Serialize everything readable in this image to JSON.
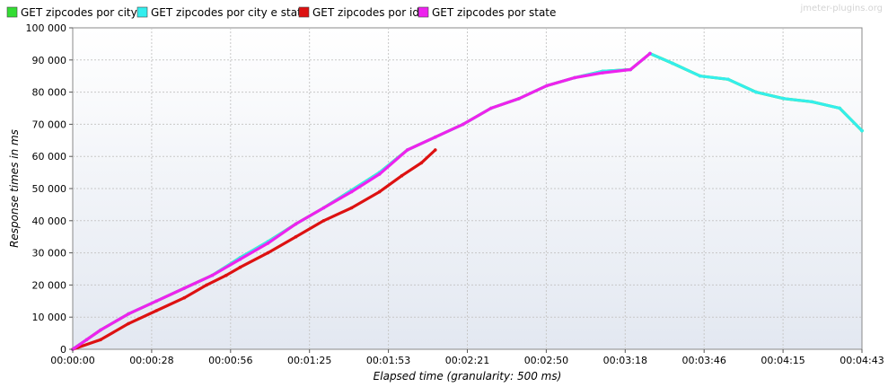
{
  "watermark": "jmeter-plugins.org",
  "chart_data": {
    "type": "line",
    "xlabel": "Elapsed time (granularity: 500 ms)",
    "ylabel": "Response times in ms",
    "x_ticks": [
      "00:00:00",
      "00:00:28",
      "00:00:56",
      "00:01:25",
      "00:01:53",
      "00:02:21",
      "00:02:50",
      "00:03:18",
      "00:03:46",
      "00:04:15",
      "00:04:43"
    ],
    "y_ticks": [
      "0",
      "10 000",
      "20 000",
      "30 000",
      "40 000",
      "50 000",
      "60 000",
      "70 000",
      "80 000",
      "90 000",
      "100 000"
    ],
    "xlim_seconds": [
      0,
      283
    ],
    "ylim": [
      0,
      100000
    ],
    "grid": true,
    "legend_position": "top",
    "x_unit": "seconds elapsed",
    "series": [
      {
        "name": "GET zipcodes por city",
        "color": "#33dd33",
        "points": [
          [
            0,
            0
          ],
          [
            5,
            3000
          ],
          [
            10,
            6000
          ],
          [
            20,
            11000
          ],
          [
            30,
            15000
          ],
          [
            40,
            19000
          ],
          [
            50,
            23000
          ],
          [
            60,
            28500
          ],
          [
            70,
            33500
          ],
          [
            80,
            39000
          ],
          [
            90,
            44000
          ],
          [
            100,
            49500
          ],
          [
            110,
            55000
          ],
          [
            120,
            62000
          ],
          [
            130,
            66000
          ],
          [
            140,
            70000
          ],
          [
            150,
            75000
          ],
          [
            160,
            78000
          ],
          [
            170,
            82000
          ],
          [
            180,
            84500
          ],
          [
            190,
            86500
          ],
          [
            200,
            87000
          ],
          [
            207,
            92000
          ],
          [
            215,
            89000
          ],
          [
            225,
            85000
          ],
          [
            235,
            84000
          ],
          [
            245,
            80000
          ],
          [
            255,
            78000
          ],
          [
            265,
            77000
          ],
          [
            275,
            75000
          ],
          [
            283,
            68000
          ]
        ]
      },
      {
        "name": "GET zipcodes por city e state",
        "color": "#33eeee",
        "points": [
          [
            0,
            0
          ],
          [
            5,
            3000
          ],
          [
            10,
            6000
          ],
          [
            20,
            11000
          ],
          [
            30,
            15000
          ],
          [
            40,
            19000
          ],
          [
            50,
            23000
          ],
          [
            60,
            28500
          ],
          [
            70,
            33500
          ],
          [
            80,
            39000
          ],
          [
            90,
            44000
          ],
          [
            100,
            49500
          ],
          [
            110,
            55000
          ],
          [
            120,
            62000
          ],
          [
            130,
            66000
          ],
          [
            140,
            70000
          ],
          [
            150,
            75000
          ],
          [
            160,
            78000
          ],
          [
            170,
            82000
          ],
          [
            180,
            84500
          ],
          [
            190,
            86500
          ],
          [
            200,
            87000
          ],
          [
            207,
            92000
          ],
          [
            215,
            89000
          ],
          [
            225,
            85000
          ],
          [
            235,
            84000
          ],
          [
            245,
            80000
          ],
          [
            255,
            78000
          ],
          [
            265,
            77000
          ],
          [
            275,
            75000
          ],
          [
            283,
            68000
          ]
        ]
      },
      {
        "name": "GET zipcodes por id",
        "color": "#dd1111",
        "points": [
          [
            0,
            0
          ],
          [
            10,
            3000
          ],
          [
            20,
            8000
          ],
          [
            30,
            12000
          ],
          [
            40,
            16000
          ],
          [
            48,
            20000
          ],
          [
            55,
            23000
          ],
          [
            60,
            25500
          ],
          [
            70,
            30000
          ],
          [
            80,
            35000
          ],
          [
            90,
            40000
          ],
          [
            100,
            44000
          ],
          [
            110,
            49000
          ],
          [
            118,
            54000
          ],
          [
            125,
            58000
          ],
          [
            130,
            62000
          ]
        ]
      },
      {
        "name": "GET zipcodes por state",
        "color": "#ee22ee",
        "points": [
          [
            0,
            0
          ],
          [
            5,
            3000
          ],
          [
            10,
            6000
          ],
          [
            20,
            11000
          ],
          [
            30,
            15000
          ],
          [
            40,
            19000
          ],
          [
            50,
            23000
          ],
          [
            60,
            28000
          ],
          [
            70,
            33000
          ],
          [
            80,
            39000
          ],
          [
            90,
            44000
          ],
          [
            100,
            49000
          ],
          [
            110,
            54500
          ],
          [
            120,
            62000
          ],
          [
            130,
            66000
          ],
          [
            140,
            70000
          ],
          [
            150,
            75000
          ],
          [
            160,
            78000
          ],
          [
            170,
            82000
          ],
          [
            180,
            84500
          ],
          [
            190,
            86000
          ],
          [
            200,
            87000
          ],
          [
            207,
            92000
          ]
        ]
      }
    ]
  }
}
